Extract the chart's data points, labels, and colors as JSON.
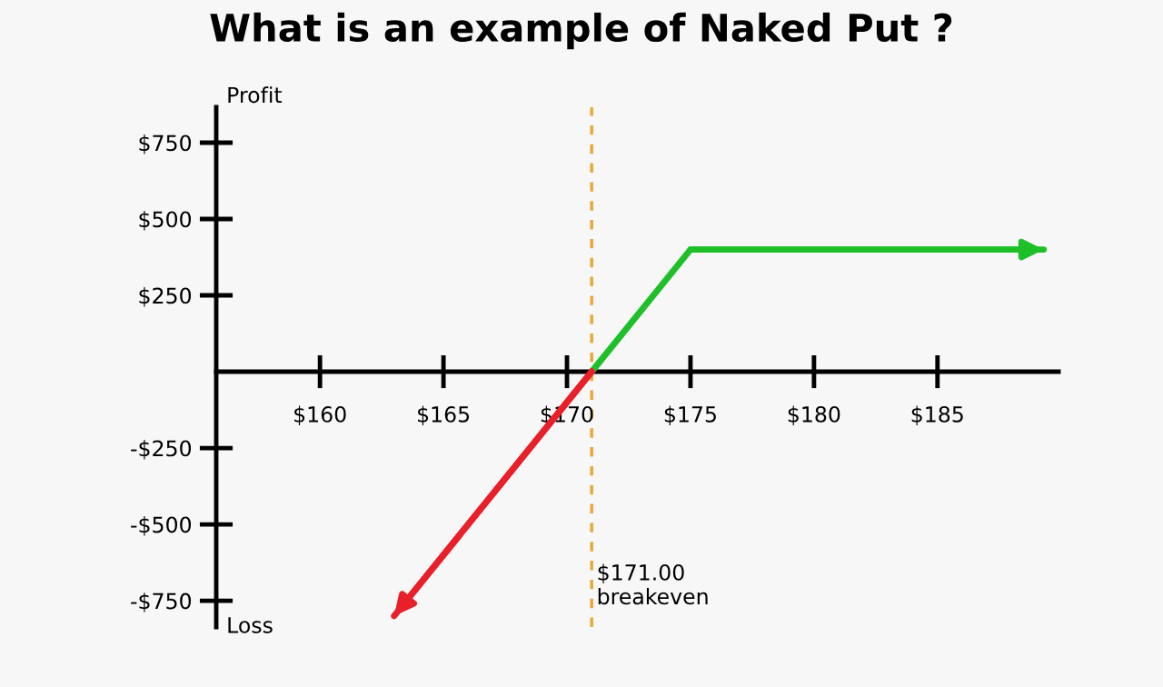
{
  "chart_data": {
    "type": "line",
    "title": "What is an example of Naked Put ?",
    "ylabel": "Profit",
    "annotations": [
      "Loss"
    ],
    "xlim": [
      155.8,
      189.9
    ],
    "ylim": [
      -836,
      866
    ],
    "xticks": [
      {
        "value": 160,
        "label": "$160"
      },
      {
        "value": 165,
        "label": "$165"
      },
      {
        "value": 170,
        "label": "$170"
      },
      {
        "value": 175,
        "label": "$175"
      },
      {
        "value": 180,
        "label": "$180"
      },
      {
        "value": 185,
        "label": "$185"
      }
    ],
    "yticks": [
      {
        "value": 750,
        "label": "$750"
      },
      {
        "value": 500,
        "label": "$500"
      },
      {
        "value": 250,
        "label": "$250"
      },
      {
        "value": -250,
        "label": "-$250"
      },
      {
        "value": -500,
        "label": "-$500"
      },
      {
        "value": -750,
        "label": "-$750"
      }
    ],
    "series": [
      {
        "color": "#1fbf2a",
        "x": [
          171,
          175,
          189.3
        ],
        "values": [
          0,
          400,
          400
        ]
      },
      {
        "color": "#e8202a",
        "x": [
          171,
          163
        ],
        "values": [
          0,
          -800
        ]
      }
    ],
    "ref_lines": [
      {
        "axis": "x",
        "value": 171,
        "label": "$171.00\nbreakeven",
        "color": "#e8a838",
        "line_style": "dashed"
      }
    ],
    "grid": false,
    "legend": false
  }
}
